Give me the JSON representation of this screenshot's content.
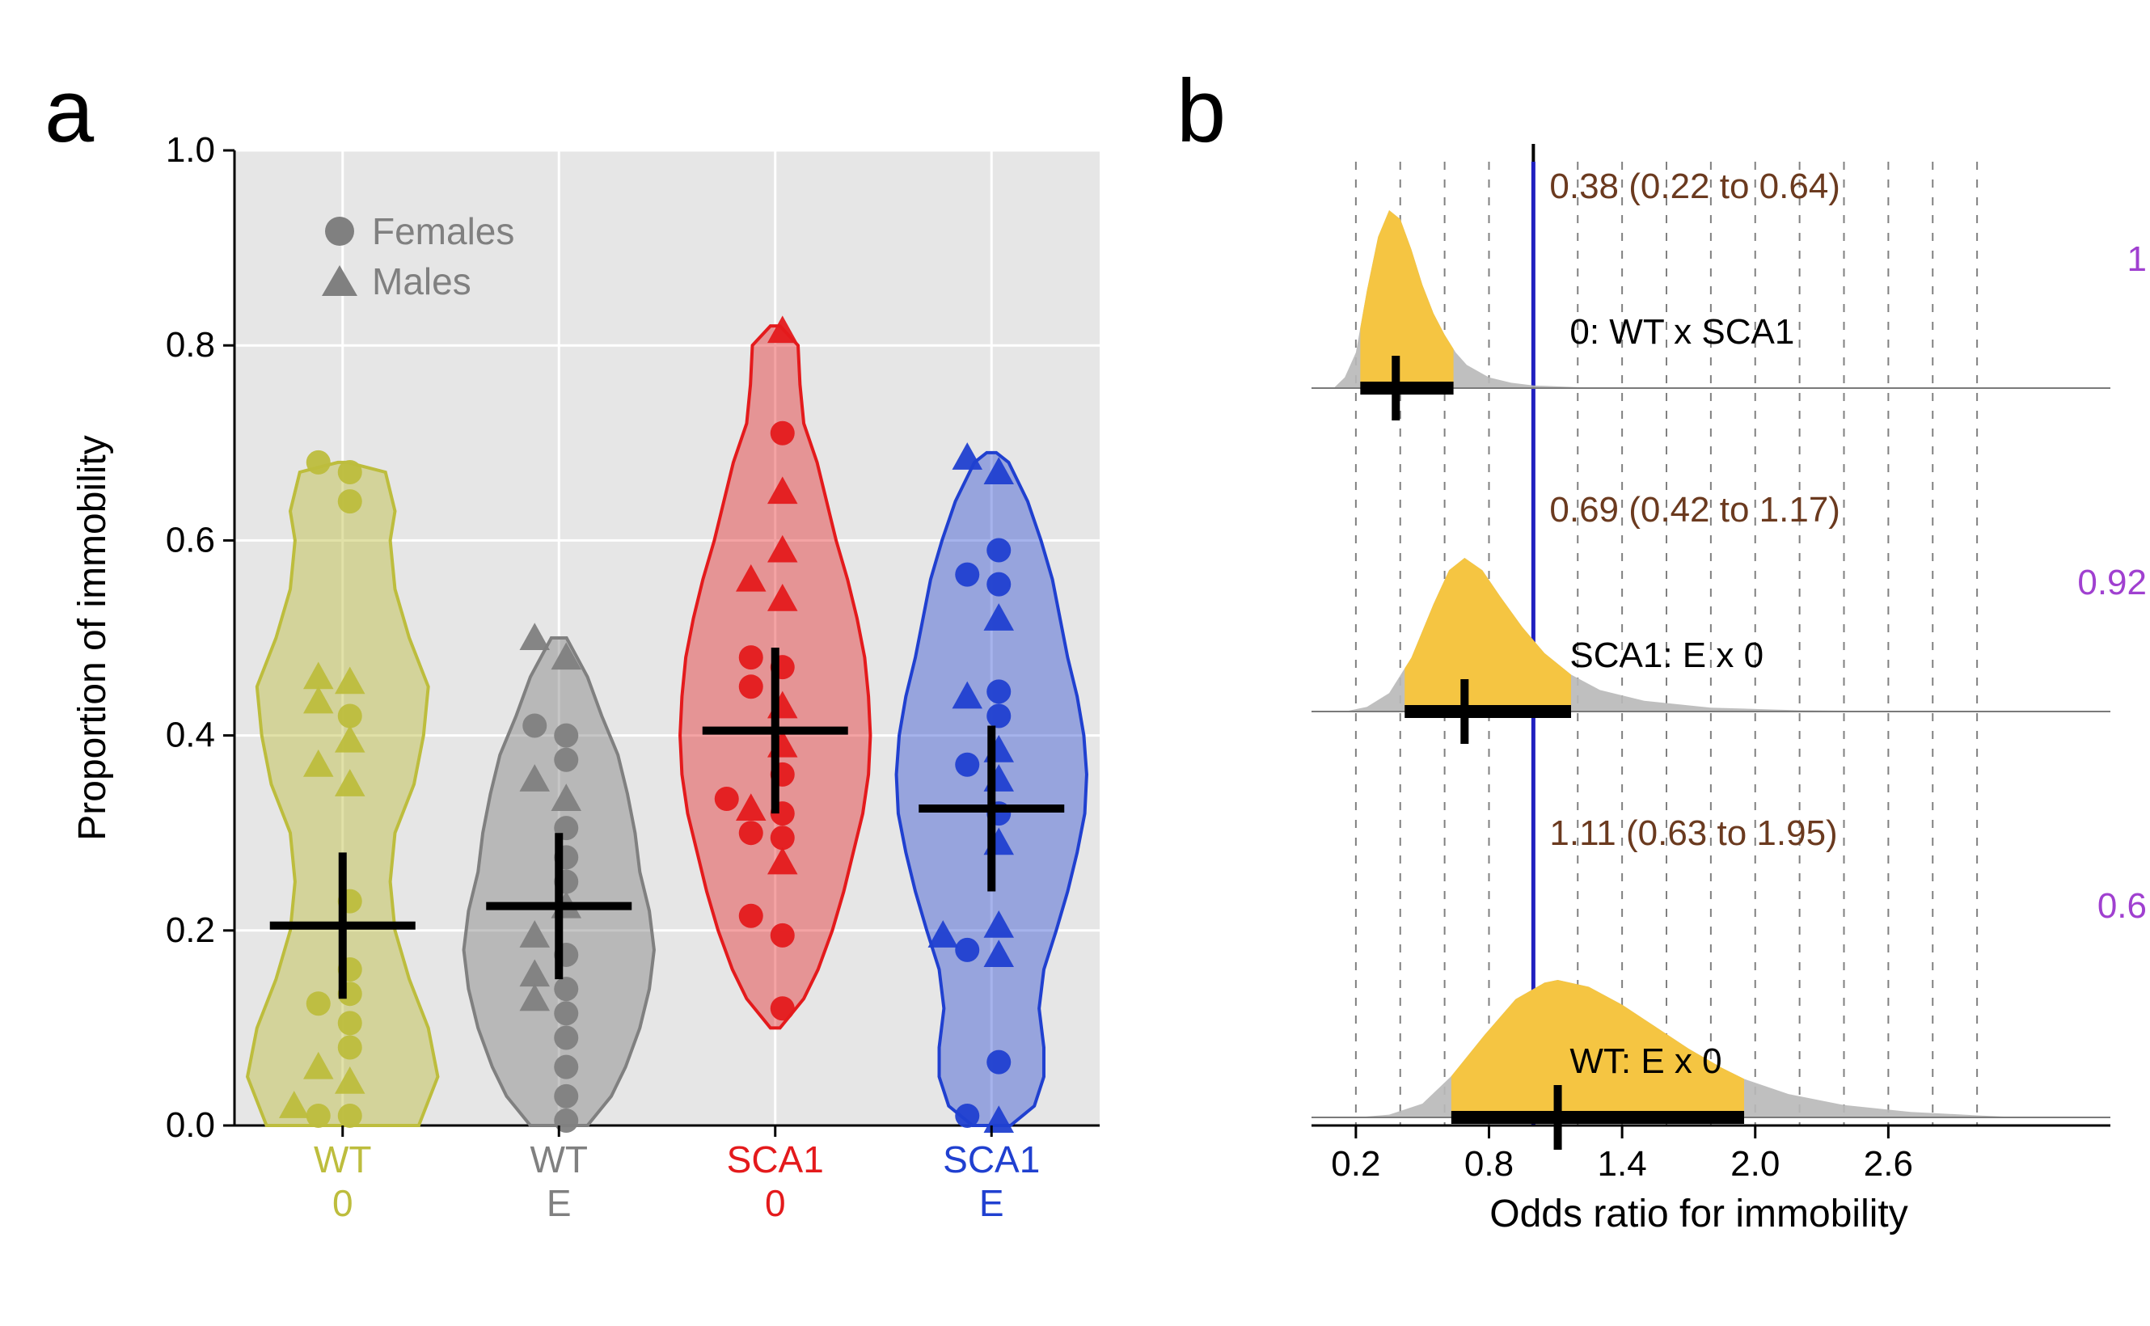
{
  "panel_labels": {
    "a": "a",
    "b": "b",
    "label_fontsize": 110,
    "label_fontweight": "400",
    "label_color": "#000000"
  },
  "legend": {
    "items": [
      {
        "marker": "circle",
        "label": "Females"
      },
      {
        "marker": "triangle",
        "label": "Males"
      }
    ],
    "marker_color": "#808080",
    "text_color": "#808080",
    "fontsize": 46
  },
  "panel_a": {
    "type": "violin+scatter",
    "title": "",
    "ylabel": "Proportion of immobility",
    "label_fontsize": 48,
    "tick_fontsize": 44,
    "x_tick_fontsize": 46,
    "ylim": [
      0.0,
      1.0
    ],
    "ytick_step": 0.2,
    "background_color": "#e6e6e6",
    "grid_color": "#ffffff",
    "axis_color": "#000000",
    "cross_color": "#000000",
    "groups": [
      {
        "id": "WT_0",
        "label_line1": "WT",
        "label_line2": "0",
        "color": "#bdbd3d",
        "fill_opacity": 0.45,
        "mean": 0.205,
        "ci": [
          0.13,
          0.28
        ],
        "violin": [
          [
            0.0,
            0.8
          ],
          [
            0.05,
            1.0
          ],
          [
            0.1,
            0.9
          ],
          [
            0.15,
            0.7
          ],
          [
            0.2,
            0.55
          ],
          [
            0.25,
            0.5
          ],
          [
            0.3,
            0.55
          ],
          [
            0.35,
            0.75
          ],
          [
            0.4,
            0.85
          ],
          [
            0.45,
            0.9
          ],
          [
            0.5,
            0.7
          ],
          [
            0.55,
            0.55
          ],
          [
            0.6,
            0.5
          ],
          [
            0.63,
            0.55
          ],
          [
            0.67,
            0.45
          ],
          [
            0.68,
            0.05
          ]
        ],
        "points": [
          {
            "y": 0.01,
            "m": "c"
          },
          {
            "y": 0.01,
            "m": "c"
          },
          {
            "y": 0.02,
            "m": "t"
          },
          {
            "y": 0.045,
            "m": "t"
          },
          {
            "y": 0.06,
            "m": "t"
          },
          {
            "y": 0.08,
            "m": "c"
          },
          {
            "y": 0.105,
            "m": "c"
          },
          {
            "y": 0.125,
            "m": "c"
          },
          {
            "y": 0.135,
            "m": "c"
          },
          {
            "y": 0.16,
            "m": "c"
          },
          {
            "y": 0.23,
            "m": "c"
          },
          {
            "y": 0.35,
            "m": "t"
          },
          {
            "y": 0.37,
            "m": "t"
          },
          {
            "y": 0.395,
            "m": "t"
          },
          {
            "y": 0.42,
            "m": "c"
          },
          {
            "y": 0.435,
            "m": "t"
          },
          {
            "y": 0.455,
            "m": "t"
          },
          {
            "y": 0.46,
            "m": "t"
          },
          {
            "y": 0.64,
            "m": "c"
          },
          {
            "y": 0.67,
            "m": "c"
          },
          {
            "y": 0.68,
            "m": "c"
          }
        ]
      },
      {
        "id": "WT_E",
        "label_line1": "WT",
        "label_line2": "E",
        "color": "#808080",
        "fill_opacity": 0.45,
        "mean": 0.225,
        "ci": [
          0.15,
          0.3
        ],
        "violin": [
          [
            0.0,
            0.3
          ],
          [
            0.03,
            0.55
          ],
          [
            0.06,
            0.7
          ],
          [
            0.1,
            0.85
          ],
          [
            0.14,
            0.95
          ],
          [
            0.18,
            1.0
          ],
          [
            0.22,
            0.95
          ],
          [
            0.26,
            0.85
          ],
          [
            0.3,
            0.8
          ],
          [
            0.34,
            0.72
          ],
          [
            0.38,
            0.62
          ],
          [
            0.42,
            0.45
          ],
          [
            0.46,
            0.3
          ],
          [
            0.5,
            0.08
          ]
        ],
        "points": [
          {
            "y": 0.005,
            "m": "c"
          },
          {
            "y": 0.03,
            "m": "c"
          },
          {
            "y": 0.06,
            "m": "c"
          },
          {
            "y": 0.09,
            "m": "c"
          },
          {
            "y": 0.115,
            "m": "c"
          },
          {
            "y": 0.13,
            "m": "t"
          },
          {
            "y": 0.14,
            "m": "c"
          },
          {
            "y": 0.155,
            "m": "t"
          },
          {
            "y": 0.175,
            "m": "c"
          },
          {
            "y": 0.195,
            "m": "t"
          },
          {
            "y": 0.225,
            "m": "t"
          },
          {
            "y": 0.25,
            "m": "c"
          },
          {
            "y": 0.275,
            "m": "c"
          },
          {
            "y": 0.305,
            "m": "c"
          },
          {
            "y": 0.335,
            "m": "t"
          },
          {
            "y": 0.355,
            "m": "t"
          },
          {
            "y": 0.375,
            "m": "c"
          },
          {
            "y": 0.4,
            "m": "c"
          },
          {
            "y": 0.41,
            "m": "c"
          },
          {
            "y": 0.48,
            "m": "t"
          },
          {
            "y": 0.5,
            "m": "t"
          }
        ]
      },
      {
        "id": "SCA1_0",
        "label_line1": "SCA1",
        "label_line2": "0",
        "color": "#e41a1c",
        "fill_opacity": 0.4,
        "mean": 0.405,
        "ci": [
          0.32,
          0.49
        ],
        "violin": [
          [
            0.1,
            0.05
          ],
          [
            0.13,
            0.3
          ],
          [
            0.16,
            0.45
          ],
          [
            0.2,
            0.6
          ],
          [
            0.24,
            0.72
          ],
          [
            0.28,
            0.82
          ],
          [
            0.32,
            0.92
          ],
          [
            0.36,
            0.98
          ],
          [
            0.4,
            1.0
          ],
          [
            0.44,
            0.98
          ],
          [
            0.48,
            0.94
          ],
          [
            0.52,
            0.86
          ],
          [
            0.56,
            0.76
          ],
          [
            0.6,
            0.64
          ],
          [
            0.64,
            0.54
          ],
          [
            0.68,
            0.44
          ],
          [
            0.72,
            0.3
          ],
          [
            0.76,
            0.26
          ],
          [
            0.8,
            0.24
          ],
          [
            0.82,
            0.05
          ]
        ],
        "points": [
          {
            "y": 0.12,
            "m": "c"
          },
          {
            "y": 0.195,
            "m": "c"
          },
          {
            "y": 0.215,
            "m": "c"
          },
          {
            "y": 0.27,
            "m": "t"
          },
          {
            "y": 0.295,
            "m": "c"
          },
          {
            "y": 0.3,
            "m": "c"
          },
          {
            "y": 0.32,
            "m": "c"
          },
          {
            "y": 0.325,
            "m": "t"
          },
          {
            "y": 0.335,
            "m": "c"
          },
          {
            "y": 0.36,
            "m": "c"
          },
          {
            "y": 0.39,
            "m": "t"
          },
          {
            "y": 0.43,
            "m": "t"
          },
          {
            "y": 0.45,
            "m": "c"
          },
          {
            "y": 0.47,
            "m": "c"
          },
          {
            "y": 0.48,
            "m": "c"
          },
          {
            "y": 0.54,
            "m": "t"
          },
          {
            "y": 0.56,
            "m": "t"
          },
          {
            "y": 0.59,
            "m": "t"
          },
          {
            "y": 0.65,
            "m": "t"
          },
          {
            "y": 0.71,
            "m": "c"
          },
          {
            "y": 0.815,
            "m": "t"
          }
        ]
      },
      {
        "id": "SCA1_E",
        "label_line1": "SCA1",
        "label_line2": "E",
        "color": "#2040d0",
        "fill_opacity": 0.4,
        "mean": 0.325,
        "ci": [
          0.24,
          0.41
        ],
        "violin": [
          [
            0.0,
            0.2
          ],
          [
            0.02,
            0.45
          ],
          [
            0.05,
            0.55
          ],
          [
            0.08,
            0.55
          ],
          [
            0.12,
            0.5
          ],
          [
            0.16,
            0.55
          ],
          [
            0.2,
            0.68
          ],
          [
            0.24,
            0.8
          ],
          [
            0.28,
            0.9
          ],
          [
            0.32,
            0.98
          ],
          [
            0.36,
            1.0
          ],
          [
            0.4,
            0.97
          ],
          [
            0.44,
            0.9
          ],
          [
            0.48,
            0.8
          ],
          [
            0.52,
            0.72
          ],
          [
            0.56,
            0.64
          ],
          [
            0.6,
            0.52
          ],
          [
            0.64,
            0.38
          ],
          [
            0.68,
            0.18
          ],
          [
            0.69,
            0.05
          ]
        ],
        "points": [
          {
            "y": 0.005,
            "m": "t"
          },
          {
            "y": 0.01,
            "m": "c"
          },
          {
            "y": 0.065,
            "m": "c"
          },
          {
            "y": 0.175,
            "m": "t"
          },
          {
            "y": 0.18,
            "m": "c"
          },
          {
            "y": 0.195,
            "m": "t"
          },
          {
            "y": 0.205,
            "m": "t"
          },
          {
            "y": 0.29,
            "m": "t"
          },
          {
            "y": 0.32,
            "m": "c"
          },
          {
            "y": 0.355,
            "m": "t"
          },
          {
            "y": 0.37,
            "m": "c"
          },
          {
            "y": 0.385,
            "m": "t"
          },
          {
            "y": 0.42,
            "m": "c"
          },
          {
            "y": 0.44,
            "m": "t"
          },
          {
            "y": 0.445,
            "m": "c"
          },
          {
            "y": 0.52,
            "m": "t"
          },
          {
            "y": 0.555,
            "m": "c"
          },
          {
            "y": 0.565,
            "m": "c"
          },
          {
            "y": 0.59,
            "m": "c"
          },
          {
            "y": 0.67,
            "m": "t"
          },
          {
            "y": 0.685,
            "m": "t"
          }
        ]
      }
    ]
  },
  "panel_b": {
    "type": "forest-density",
    "xlabel": "Odds ratio for immobility",
    "label_fontsize": 48,
    "tick_fontsize": 44,
    "stat_fontsize": 44,
    "stat_color": "#6b3a1f",
    "row_label_fontsize": 44,
    "row_label_color": "#000000",
    "side_color": "#a040d0",
    "xlim": [
      0.0,
      3.2
    ],
    "xticks": [
      0.2,
      0.8,
      1.4,
      2.0,
      2.6
    ],
    "gridlines": [
      0.2,
      0.4,
      0.6,
      0.8,
      1.0,
      1.2,
      1.4,
      1.6,
      1.8,
      2.0,
      2.2,
      2.4,
      2.6,
      2.8,
      3.0
    ],
    "grid_color": "#808080",
    "refline_x": 1.0,
    "refline_color": "#2020c0",
    "fill_color": "#f5c542",
    "tail_color": "#b8b8b8",
    "rows": [
      {
        "label": "0: WT x SCA1",
        "stat_text": "0.38 (0.22 to 0.64)",
        "side_text": "1",
        "median": 0.38,
        "ci": [
          0.22,
          0.64
        ],
        "density": [
          [
            0.1,
            0.0
          ],
          [
            0.15,
            0.06
          ],
          [
            0.2,
            0.2
          ],
          [
            0.25,
            0.55
          ],
          [
            0.3,
            0.85
          ],
          [
            0.35,
            1.0
          ],
          [
            0.4,
            0.95
          ],
          [
            0.45,
            0.78
          ],
          [
            0.5,
            0.58
          ],
          [
            0.55,
            0.42
          ],
          [
            0.6,
            0.3
          ],
          [
            0.65,
            0.2
          ],
          [
            0.7,
            0.13
          ],
          [
            0.8,
            0.06
          ],
          [
            0.9,
            0.03
          ],
          [
            1.0,
            0.015
          ],
          [
            1.2,
            0.005
          ],
          [
            1.5,
            0.0
          ]
        ]
      },
      {
        "label": "SCA1: E x 0",
        "stat_text": "0.69 (0.42 to 1.17)",
        "side_text": "0.92",
        "median": 0.69,
        "ci": [
          0.42,
          1.17
        ],
        "density": [
          [
            0.15,
            0.0
          ],
          [
            0.25,
            0.03
          ],
          [
            0.35,
            0.12
          ],
          [
            0.45,
            0.35
          ],
          [
            0.55,
            0.7
          ],
          [
            0.62,
            0.92
          ],
          [
            0.69,
            1.0
          ],
          [
            0.77,
            0.92
          ],
          [
            0.85,
            0.75
          ],
          [
            0.95,
            0.55
          ],
          [
            1.05,
            0.38
          ],
          [
            1.17,
            0.24
          ],
          [
            1.3,
            0.14
          ],
          [
            1.5,
            0.07
          ],
          [
            1.8,
            0.025
          ],
          [
            2.2,
            0.008
          ],
          [
            2.8,
            0.0
          ]
        ]
      },
      {
        "label": "WT: E x 0",
        "stat_text": "1.11 (0.63 to 1.95)",
        "side_text": "0.6",
        "median": 1.11,
        "ci": [
          0.63,
          1.95
        ],
        "density": [
          [
            0.2,
            0.0
          ],
          [
            0.35,
            0.02
          ],
          [
            0.5,
            0.1
          ],
          [
            0.63,
            0.3
          ],
          [
            0.78,
            0.6
          ],
          [
            0.92,
            0.86
          ],
          [
            1.05,
            0.98
          ],
          [
            1.11,
            1.0
          ],
          [
            1.25,
            0.95
          ],
          [
            1.4,
            0.82
          ],
          [
            1.55,
            0.66
          ],
          [
            1.7,
            0.5
          ],
          [
            1.85,
            0.36
          ],
          [
            1.95,
            0.28
          ],
          [
            2.15,
            0.17
          ],
          [
            2.4,
            0.09
          ],
          [
            2.7,
            0.04
          ],
          [
            3.0,
            0.015
          ],
          [
            3.2,
            0.0
          ]
        ]
      }
    ]
  }
}
